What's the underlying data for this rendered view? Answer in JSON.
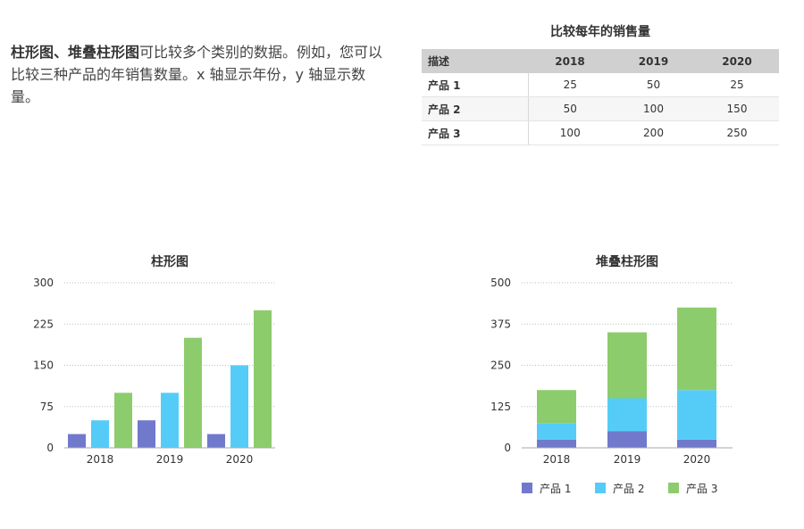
{
  "intro": {
    "bold_part": "柱形图、堆叠柱形图",
    "rest": "可比较多个类别的数据。例如，您可以比较三种产品的年销售数量。x 轴显示年份，y 轴显示数量。"
  },
  "table": {
    "title": "比较每年的销售量",
    "headers": [
      "描述",
      "2018",
      "2019",
      "2020"
    ],
    "rows": [
      {
        "label": "产品 1",
        "values": [
          "25",
          "50",
          "25"
        ]
      },
      {
        "label": "产品 2",
        "values": [
          "50",
          "100",
          "150"
        ]
      },
      {
        "label": "产品 3",
        "values": [
          "100",
          "200",
          "250"
        ]
      }
    ]
  },
  "colors": {
    "series": [
      "#7079cc",
      "#55ccf7",
      "#8ccc6c"
    ],
    "grid": "#bbbbbb",
    "axis": "#aaaaaa"
  },
  "chart_data": [
    {
      "type": "bar",
      "title": "柱形图",
      "categories": [
        "2018",
        "2019",
        "2020"
      ],
      "series": [
        {
          "name": "产品 1",
          "values": [
            25,
            50,
            25
          ]
        },
        {
          "name": "产品 2",
          "values": [
            50,
            100,
            150
          ]
        },
        {
          "name": "产品 3",
          "values": [
            100,
            200,
            250
          ]
        }
      ],
      "ylim": [
        0,
        300
      ],
      "yticks": [
        0,
        75,
        150,
        225,
        300
      ],
      "ytick_labels": [
        "0",
        "75",
        "150",
        "225",
        "300"
      ],
      "grid": true,
      "legend": "none",
      "xlabel": "",
      "ylabel": ""
    },
    {
      "type": "bar",
      "stacked": true,
      "title": "堆叠柱形图",
      "categories": [
        "2018",
        "2019",
        "2020"
      ],
      "series": [
        {
          "name": "产品 1",
          "values": [
            25,
            50,
            25
          ]
        },
        {
          "name": "产品 2",
          "values": [
            50,
            100,
            150
          ]
        },
        {
          "name": "产品 3",
          "values": [
            100,
            200,
            250
          ]
        }
      ],
      "ylim": [
        0,
        500
      ],
      "yticks": [
        0,
        125,
        250,
        375,
        500
      ],
      "ytick_labels": [
        "0",
        "125",
        "250",
        "375",
        "500"
      ],
      "grid": true,
      "legend": "bottom",
      "xlabel": "",
      "ylabel": ""
    }
  ]
}
